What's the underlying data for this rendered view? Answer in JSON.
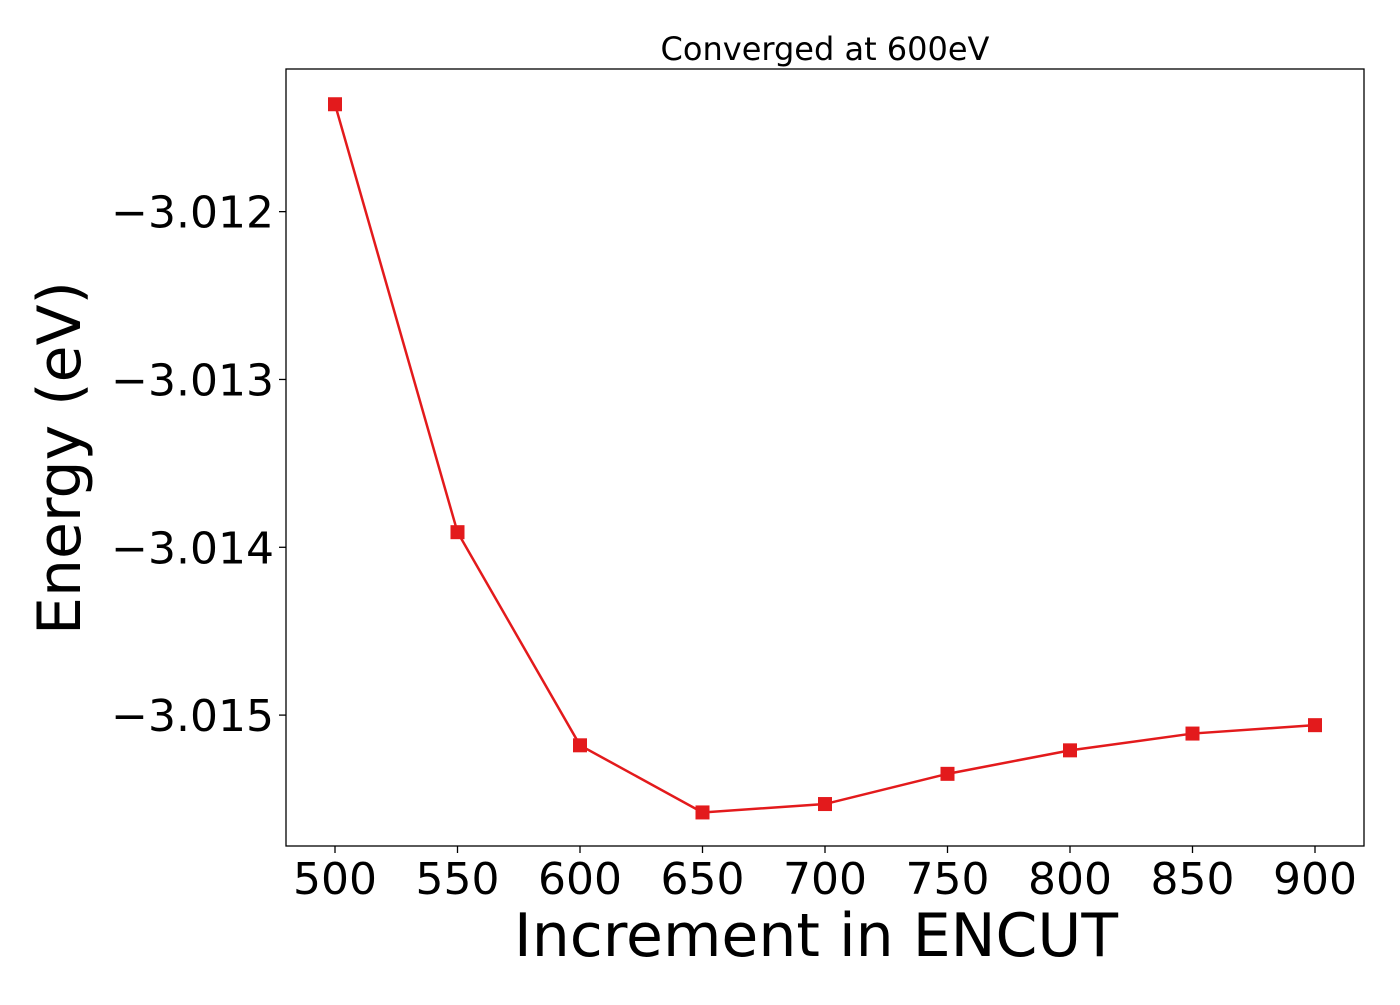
{
  "chart_data": {
    "type": "line",
    "title": "Converged at 600eV",
    "xlabel": "Increment in ENCUT",
    "ylabel": "Energy (eV)",
    "x": [
      500,
      550,
      600,
      650,
      700,
      750,
      800,
      850,
      900
    ],
    "series": [
      {
        "values": [
          -3.01136,
          -3.01391,
          -3.01518,
          -3.01558,
          -3.01553,
          -3.01535,
          -3.01521,
          -3.01511,
          -3.01506
        ],
        "color": "#e31a1c",
        "marker": "square"
      }
    ],
    "xticks": [
      500,
      550,
      600,
      650,
      700,
      750,
      800,
      850,
      900
    ],
    "xtick_labels": [
      "500",
      "550",
      "600",
      "650",
      "700",
      "750",
      "800",
      "850",
      "900"
    ],
    "yticks": [
      -3.012,
      -3.013,
      -3.014,
      -3.015
    ],
    "ytick_labels": [
      "−3.012",
      "−3.013",
      "−3.014",
      "−3.015"
    ],
    "xlim": [
      480,
      920
    ],
    "ylim": [
      -3.01578,
      -3.01115
    ],
    "grid": false,
    "legend": "none"
  }
}
